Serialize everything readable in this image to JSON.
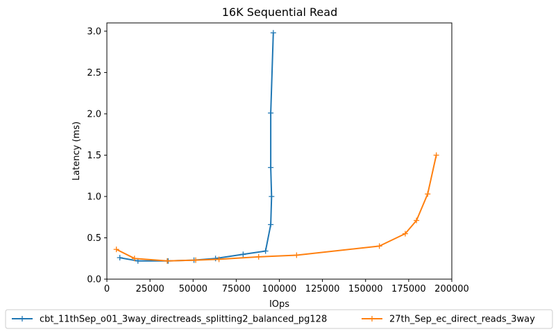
{
  "chart_data": {
    "type": "line",
    "title": "16K  Sequential Read",
    "xlabel": "IOps",
    "ylabel": "Latency (ms)",
    "xlim": [
      0,
      200000
    ],
    "ylim": [
      0,
      3.1
    ],
    "xticks": [
      0,
      25000,
      50000,
      75000,
      100000,
      125000,
      150000,
      175000,
      200000
    ],
    "xtick_labels": [
      "0",
      "25000",
      "50000",
      "75000",
      "100000",
      "125000",
      "150000",
      "175000",
      "200000"
    ],
    "yticks": [
      0.0,
      0.5,
      1.0,
      1.5,
      2.0,
      2.5,
      3.0
    ],
    "ytick_labels": [
      "0.0",
      "0.5",
      "1.0",
      "1.5",
      "2.0",
      "2.5",
      "3.0"
    ],
    "grid": false,
    "legend_position": "bottom-outside",
    "series": [
      {
        "name": "cbt_11thSep_o01_3way_directreads_splitting2_balanced_pg128",
        "color": "#1f77b4",
        "marker": "+",
        "x": [
          7500,
          18000,
          35500,
          50500,
          63000,
          79000,
          92000,
          95000,
          95500,
          95000,
          95000,
          96500
        ],
        "y": [
          0.26,
          0.22,
          0.22,
          0.23,
          0.25,
          0.3,
          0.34,
          0.66,
          1.0,
          1.35,
          2.01,
          2.98
        ]
      },
      {
        "name": "27th_Sep_ec_direct_reads_3way",
        "color": "#ff7f0e",
        "marker": "+",
        "x": [
          5500,
          16000,
          35000,
          51500,
          65000,
          88000,
          110000,
          158000,
          173000,
          179500,
          186000,
          191000
        ],
        "y": [
          0.36,
          0.25,
          0.22,
          0.23,
          0.24,
          0.27,
          0.29,
          0.4,
          0.55,
          0.71,
          1.03,
          1.5
        ]
      }
    ]
  }
}
